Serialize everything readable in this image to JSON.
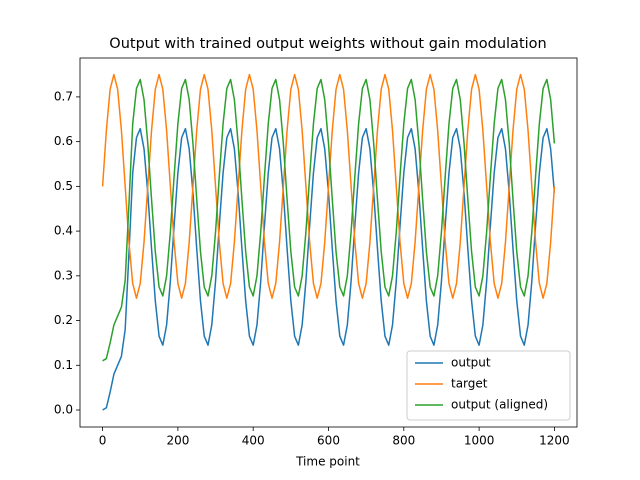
{
  "chart_data": {
    "type": "line",
    "title": "Output with trained output weights without gain modulation",
    "x_label": "Time point",
    "x": [
      0,
      10,
      20,
      30,
      40,
      50,
      60,
      70,
      80,
      90,
      100,
      110,
      120,
      130,
      140,
      150,
      160,
      170,
      180,
      190,
      200,
      210,
      220,
      230,
      240,
      250,
      260,
      270,
      280,
      290,
      300,
      310,
      320,
      330,
      340,
      350,
      360,
      370,
      380,
      390,
      400,
      410,
      420,
      430,
      440,
      450,
      460,
      470,
      480,
      490,
      500,
      510,
      520,
      530,
      540,
      550,
      560,
      570,
      580,
      590,
      600,
      610,
      620,
      630,
      640,
      650,
      660,
      670,
      680,
      690,
      700,
      710,
      720,
      730,
      740,
      750,
      760,
      770,
      780,
      790,
      800,
      810,
      820,
      830,
      840,
      850,
      860,
      870,
      880,
      890,
      900,
      910,
      920,
      930,
      940,
      950,
      960,
      970,
      980,
      990,
      1000,
      1010,
      1020,
      1030,
      1040,
      1050,
      1060,
      1070,
      1080,
      1090,
      1100,
      1110,
      1120,
      1130,
      1140,
      1150,
      1160,
      1170,
      1180,
      1190,
      1200
    ],
    "series": [
      {
        "name": "output",
        "color": "#1f77b4",
        "values": [
          0,
          0.005,
          0.04,
          0.08,
          0.1,
          0.12,
          0.18,
          0.35,
          0.53,
          0.609,
          0.629,
          0.584,
          0.486,
          0.361,
          0.244,
          0.165,
          0.145,
          0.19,
          0.288,
          0.413,
          0.53,
          0.609,
          0.629,
          0.584,
          0.486,
          0.361,
          0.244,
          0.165,
          0.145,
          0.19,
          0.288,
          0.413,
          0.53,
          0.609,
          0.629,
          0.584,
          0.486,
          0.361,
          0.244,
          0.165,
          0.145,
          0.19,
          0.288,
          0.413,
          0.53,
          0.609,
          0.629,
          0.584,
          0.486,
          0.361,
          0.244,
          0.165,
          0.145,
          0.19,
          0.288,
          0.413,
          0.53,
          0.609,
          0.629,
          0.584,
          0.486,
          0.361,
          0.244,
          0.165,
          0.145,
          0.19,
          0.288,
          0.413,
          0.53,
          0.609,
          0.629,
          0.584,
          0.486,
          0.361,
          0.244,
          0.165,
          0.145,
          0.19,
          0.288,
          0.413,
          0.53,
          0.609,
          0.629,
          0.584,
          0.486,
          0.361,
          0.244,
          0.165,
          0.145,
          0.19,
          0.288,
          0.413,
          0.53,
          0.609,
          0.629,
          0.584,
          0.486,
          0.361,
          0.244,
          0.165,
          0.145,
          0.19,
          0.288,
          0.413,
          0.53,
          0.609,
          0.629,
          0.584,
          0.486,
          0.361,
          0.244,
          0.165,
          0.145,
          0.19,
          0.288,
          0.413,
          0.53,
          0.609,
          0.629,
          0.584,
          0.486
        ]
      },
      {
        "name": "target",
        "color": "#ff7f0e",
        "values": [
          0.5,
          0.625,
          0.717,
          0.75,
          0.717,
          0.625,
          0.5,
          0.375,
          0.283,
          0.25,
          0.283,
          0.375,
          0.5,
          0.625,
          0.717,
          0.75,
          0.717,
          0.625,
          0.5,
          0.375,
          0.283,
          0.25,
          0.283,
          0.375,
          0.5,
          0.625,
          0.717,
          0.75,
          0.717,
          0.625,
          0.5,
          0.375,
          0.283,
          0.25,
          0.283,
          0.375,
          0.5,
          0.625,
          0.717,
          0.75,
          0.717,
          0.625,
          0.5,
          0.375,
          0.283,
          0.25,
          0.283,
          0.375,
          0.5,
          0.625,
          0.717,
          0.75,
          0.717,
          0.625,
          0.5,
          0.375,
          0.283,
          0.25,
          0.283,
          0.375,
          0.5,
          0.625,
          0.717,
          0.75,
          0.717,
          0.625,
          0.5,
          0.375,
          0.283,
          0.25,
          0.283,
          0.375,
          0.5,
          0.625,
          0.717,
          0.75,
          0.717,
          0.625,
          0.5,
          0.375,
          0.283,
          0.25,
          0.283,
          0.375,
          0.5,
          0.625,
          0.717,
          0.75,
          0.717,
          0.625,
          0.5,
          0.375,
          0.283,
          0.25,
          0.283,
          0.375,
          0.5,
          0.625,
          0.717,
          0.75,
          0.717,
          0.625,
          0.5,
          0.375,
          0.283,
          0.25,
          0.283,
          0.375,
          0.5,
          0.625,
          0.717,
          0.75,
          0.717,
          0.625,
          0.5,
          0.375,
          0.283,
          0.25,
          0.283,
          0.375,
          0.5
        ]
      },
      {
        "name": "output (aligned)",
        "color": "#2ca02c",
        "values": [
          0.11,
          0.115,
          0.15,
          0.19,
          0.21,
          0.23,
          0.29,
          0.46,
          0.64,
          0.719,
          0.739,
          0.694,
          0.596,
          0.471,
          0.354,
          0.275,
          0.255,
          0.3,
          0.398,
          0.523,
          0.64,
          0.719,
          0.739,
          0.694,
          0.596,
          0.471,
          0.354,
          0.275,
          0.255,
          0.3,
          0.398,
          0.523,
          0.64,
          0.719,
          0.739,
          0.694,
          0.596,
          0.471,
          0.354,
          0.275,
          0.255,
          0.3,
          0.398,
          0.523,
          0.64,
          0.719,
          0.739,
          0.694,
          0.596,
          0.471,
          0.354,
          0.275,
          0.255,
          0.3,
          0.398,
          0.523,
          0.64,
          0.719,
          0.739,
          0.694,
          0.596,
          0.471,
          0.354,
          0.275,
          0.255,
          0.3,
          0.398,
          0.523,
          0.64,
          0.719,
          0.739,
          0.694,
          0.596,
          0.471,
          0.354,
          0.275,
          0.255,
          0.3,
          0.398,
          0.523,
          0.64,
          0.719,
          0.739,
          0.694,
          0.596,
          0.471,
          0.354,
          0.275,
          0.255,
          0.3,
          0.398,
          0.523,
          0.64,
          0.719,
          0.739,
          0.694,
          0.596,
          0.471,
          0.354,
          0.275,
          0.255,
          0.3,
          0.398,
          0.523,
          0.64,
          0.719,
          0.739,
          0.694,
          0.596,
          0.471,
          0.354,
          0.275,
          0.255,
          0.3,
          0.398,
          0.523,
          0.64,
          0.719,
          0.739,
          0.694,
          0.596
        ]
      }
    ],
    "xlim": [
      -60,
      1260
    ],
    "ylim": [
      -0.038,
      0.787
    ],
    "xticks": [
      0,
      200,
      400,
      600,
      800,
      1000,
      1200
    ],
    "yticks": [
      {
        "value": 0,
        "label": "0.0"
      },
      0.1,
      0.2,
      0.3,
      0.4,
      0.5,
      0.6,
      0.7
    ],
    "legend": "lower right",
    "grid": false
  }
}
